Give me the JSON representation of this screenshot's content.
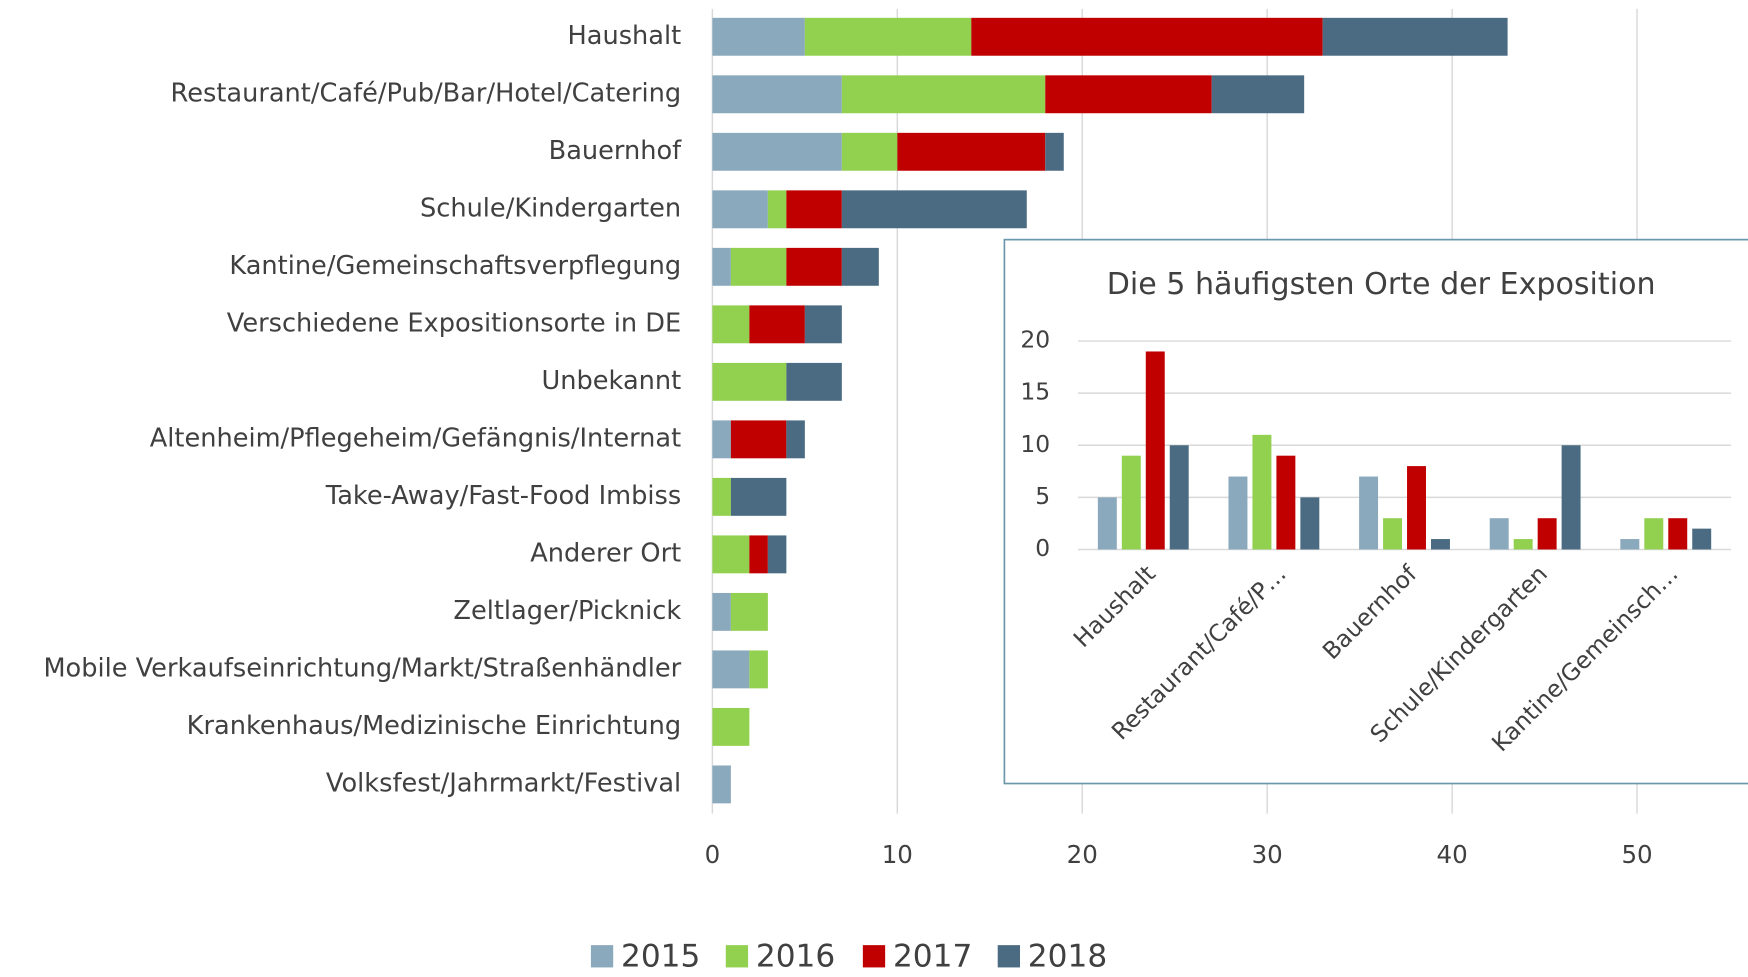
{
  "chart_data": [
    {
      "type": "stacked_barh",
      "categories": [
        "Haushalt",
        "Restaurant/Café/Pub/Bar/Hotel/Catering",
        "Bauernhof",
        "Schule/Kindergarten",
        "Kantine/Gemeinschaftsverpflegung",
        "Verschiedene Expositionsorte in DE",
        "Unbekannt",
        "Altenheim/Pflegeheim/Gefängnis/Internat",
        "Take-Away/Fast-Food Imbiss",
        "Anderer Ort",
        "Zeltlager/Picknick",
        "Mobile Verkaufseinrichtung/Markt/Straßenhändler",
        "Krankenhaus/Medizinische Einrichtung",
        "Volksfest/Jahrmarkt/Festival"
      ],
      "series": [
        {
          "name": "2015",
          "color": "#8aa9bc",
          "values": [
            5,
            7,
            7,
            3,
            1,
            0,
            0,
            1,
            0,
            0,
            1,
            2,
            0,
            1
          ]
        },
        {
          "name": "2016",
          "color": "#92d050",
          "values": [
            9,
            11,
            3,
            1,
            3,
            2,
            4,
            0,
            1,
            2,
            2,
            1,
            2,
            0
          ]
        },
        {
          "name": "2017",
          "color": "#c00000",
          "values": [
            19,
            9,
            8,
            3,
            3,
            3,
            0,
            3,
            0,
            1,
            0,
            0,
            0,
            0
          ]
        },
        {
          "name": "2018",
          "color": "#4a6b82",
          "values": [
            10,
            5,
            1,
            10,
            2,
            2,
            3,
            1,
            3,
            1,
            0,
            0,
            0,
            0
          ]
        }
      ],
      "xlim": [
        0,
        54
      ],
      "xticks": [
        0,
        10,
        20,
        30,
        40,
        50
      ],
      "grid": true,
      "legend": "bottom"
    },
    {
      "type": "bar",
      "title": "Die 5 häufigsten Orte der Exposition",
      "categories": [
        "Haushalt",
        "Restaurant/Café/P…",
        "Bauernhof",
        "Schule/Kindergarten",
        "Kantine/Gemeinsch…"
      ],
      "series": [
        {
          "color": "#8aa9bc",
          "values": [
            5,
            7,
            7,
            3,
            1
          ]
        },
        {
          "color": "#92d050",
          "values": [
            9,
            11,
            3,
            1,
            3
          ]
        },
        {
          "color": "#c00000",
          "values": [
            19,
            9,
            8,
            3,
            3
          ]
        },
        {
          "color": "#4a6b82",
          "values": [
            10,
            5,
            1,
            10,
            2
          ]
        }
      ],
      "ylim": [
        0,
        20
      ],
      "yticks": [
        0,
        5,
        10,
        15,
        20
      ],
      "grid": true
    }
  ]
}
